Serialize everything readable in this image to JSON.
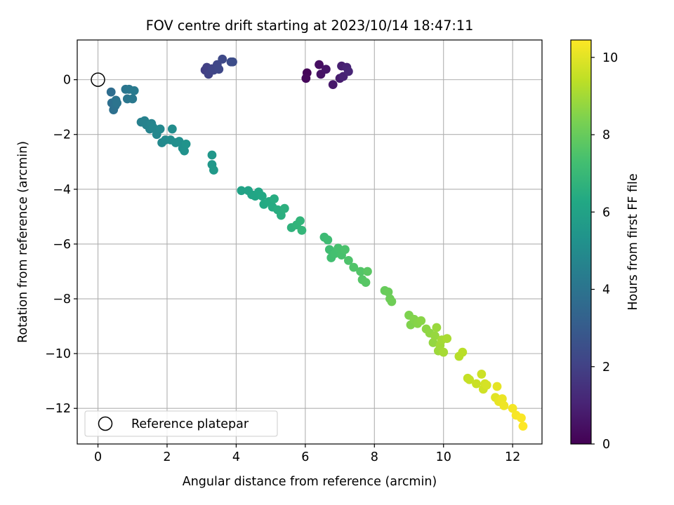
{
  "chart_data": {
    "type": "scatter",
    "title": "FOV centre drift starting at 2023/10/14 18:47:11",
    "xlabel": "Angular distance from reference (arcmin)",
    "ylabel": "Rotation from reference (arcmin)",
    "xlim": [
      -0.6,
      12.85
    ],
    "ylim": [
      -13.3,
      1.45
    ],
    "xticks": [
      0,
      2,
      4,
      6,
      8,
      10,
      12
    ],
    "yticks": [
      0,
      -2,
      -4,
      -6,
      -8,
      -10,
      -12
    ],
    "grid": true,
    "colormap": "viridis",
    "colorbar": {
      "label": "Hours from first FF file",
      "range": [
        0,
        10.45
      ],
      "ticks": [
        0,
        2,
        4,
        6,
        8,
        10
      ]
    },
    "legend": {
      "placement": "lower-left",
      "entries": [
        {
          "label": "Reference platepar",
          "marker": "open-circle"
        }
      ]
    },
    "reference_point": {
      "x": 0,
      "y": 0
    },
    "series": [
      {
        "fields": [
          "x",
          "y",
          "hours"
        ],
        "points": [
          [
            6.05,
            0.25,
            0.1
          ],
          [
            6.02,
            0.05,
            0.2
          ],
          [
            6.4,
            0.55,
            0.4
          ],
          [
            6.45,
            0.2,
            0.5
          ],
          [
            6.6,
            0.38,
            0.6
          ],
          [
            6.8,
            -0.18,
            0.7
          ],
          [
            7.0,
            0.05,
            0.8
          ],
          [
            7.05,
            0.5,
            0.9
          ],
          [
            7.1,
            0.12,
            1.0
          ],
          [
            7.2,
            0.45,
            1.05
          ],
          [
            7.25,
            0.3,
            1.1
          ],
          [
            3.1,
            0.35,
            1.9
          ],
          [
            3.15,
            0.45,
            2.0
          ],
          [
            3.2,
            0.2,
            2.05
          ],
          [
            3.3,
            0.4,
            2.1
          ],
          [
            3.35,
            0.35,
            2.15
          ],
          [
            3.45,
            0.55,
            2.2
          ],
          [
            3.5,
            0.38,
            2.25
          ],
          [
            3.6,
            0.75,
            2.3
          ],
          [
            3.85,
            0.65,
            2.4
          ],
          [
            3.9,
            0.65,
            2.45
          ],
          [
            0.38,
            -0.45,
            3.7
          ],
          [
            0.4,
            -0.85,
            3.8
          ],
          [
            0.45,
            -1.1,
            3.85
          ],
          [
            0.5,
            -0.95,
            3.9
          ],
          [
            0.52,
            -0.75,
            3.95
          ],
          [
            0.55,
            -0.85,
            4.0
          ],
          [
            0.8,
            -0.35,
            4.05
          ],
          [
            0.85,
            -0.7,
            4.1
          ],
          [
            0.9,
            -0.35,
            4.15
          ],
          [
            1.0,
            -0.7,
            4.2
          ],
          [
            1.05,
            -0.4,
            4.25
          ],
          [
            1.25,
            -1.55,
            4.5
          ],
          [
            1.35,
            -1.5,
            4.55
          ],
          [
            1.4,
            -1.65,
            4.6
          ],
          [
            1.5,
            -1.8,
            4.65
          ],
          [
            1.55,
            -1.6,
            4.7
          ],
          [
            1.6,
            -1.75,
            4.75
          ],
          [
            1.7,
            -2.0,
            4.8
          ],
          [
            1.8,
            -1.8,
            4.85
          ],
          [
            1.85,
            -2.3,
            4.9
          ],
          [
            1.95,
            -2.2,
            4.95
          ],
          [
            2.1,
            -2.2,
            5.0
          ],
          [
            2.15,
            -1.8,
            5.05
          ],
          [
            2.25,
            -2.3,
            5.1
          ],
          [
            2.35,
            -2.25,
            5.15
          ],
          [
            2.45,
            -2.5,
            5.2
          ],
          [
            2.5,
            -2.6,
            5.25
          ],
          [
            2.55,
            -2.35,
            5.3
          ],
          [
            3.3,
            -2.75,
            5.5
          ],
          [
            3.3,
            -3.1,
            5.55
          ],
          [
            3.35,
            -3.3,
            5.6
          ],
          [
            4.15,
            -4.05,
            6.0
          ],
          [
            4.35,
            -4.05,
            6.05
          ],
          [
            4.45,
            -4.2,
            6.1
          ],
          [
            4.55,
            -4.25,
            6.15
          ],
          [
            4.65,
            -4.1,
            6.2
          ],
          [
            4.75,
            -4.25,
            6.25
          ],
          [
            4.8,
            -4.55,
            6.3
          ],
          [
            4.95,
            -4.45,
            6.35
          ],
          [
            5.05,
            -4.65,
            6.4
          ],
          [
            5.1,
            -4.35,
            6.45
          ],
          [
            5.2,
            -4.75,
            6.5
          ],
          [
            5.3,
            -4.95,
            6.55
          ],
          [
            5.4,
            -4.7,
            6.6
          ],
          [
            5.6,
            -5.4,
            6.7
          ],
          [
            5.75,
            -5.3,
            6.75
          ],
          [
            5.85,
            -5.15,
            6.8
          ],
          [
            5.9,
            -5.5,
            6.85
          ],
          [
            6.55,
            -5.75,
            7.1
          ],
          [
            6.65,
            -5.85,
            7.15
          ],
          [
            6.7,
            -6.2,
            7.2
          ],
          [
            6.75,
            -6.5,
            7.25
          ],
          [
            6.85,
            -6.35,
            7.3
          ],
          [
            6.95,
            -6.15,
            7.35
          ],
          [
            7.05,
            -6.4,
            7.4
          ],
          [
            7.15,
            -6.2,
            7.45
          ],
          [
            7.25,
            -6.6,
            7.5
          ],
          [
            7.4,
            -6.85,
            7.55
          ],
          [
            7.6,
            -7.0,
            7.6
          ],
          [
            7.65,
            -7.3,
            7.65
          ],
          [
            7.75,
            -7.4,
            7.7
          ],
          [
            7.8,
            -7.0,
            7.75
          ],
          [
            8.3,
            -7.7,
            8.0
          ],
          [
            8.4,
            -7.75,
            8.05
          ],
          [
            8.45,
            -8.0,
            8.1
          ],
          [
            8.5,
            -8.1,
            8.15
          ],
          [
            9.0,
            -8.6,
            8.4
          ],
          [
            9.05,
            -8.95,
            8.45
          ],
          [
            9.15,
            -8.75,
            8.5
          ],
          [
            9.25,
            -8.9,
            8.55
          ],
          [
            9.35,
            -8.8,
            8.6
          ],
          [
            9.5,
            -9.1,
            8.65
          ],
          [
            9.6,
            -9.25,
            8.7
          ],
          [
            9.7,
            -9.6,
            8.75
          ],
          [
            9.75,
            -9.35,
            8.8
          ],
          [
            9.8,
            -9.05,
            8.85
          ],
          [
            9.85,
            -9.9,
            8.9
          ],
          [
            9.9,
            -9.7,
            8.95
          ],
          [
            9.95,
            -9.5,
            9.0
          ],
          [
            10.0,
            -9.95,
            9.05
          ],
          [
            10.1,
            -9.45,
            9.1
          ],
          [
            10.45,
            -10.1,
            9.3
          ],
          [
            10.55,
            -9.95,
            9.35
          ],
          [
            10.7,
            -10.9,
            9.5
          ],
          [
            10.75,
            -10.95,
            9.55
          ],
          [
            10.95,
            -11.1,
            9.6
          ],
          [
            11.1,
            -10.75,
            9.65
          ],
          [
            11.15,
            -11.3,
            9.7
          ],
          [
            11.2,
            -11.1,
            9.75
          ],
          [
            11.25,
            -11.15,
            9.8
          ],
          [
            11.5,
            -11.6,
            10.0
          ],
          [
            11.55,
            -11.2,
            10.05
          ],
          [
            11.6,
            -11.75,
            10.1
          ],
          [
            11.7,
            -11.65,
            10.15
          ],
          [
            11.75,
            -11.9,
            10.2
          ],
          [
            12.0,
            -12.0,
            10.3
          ],
          [
            12.1,
            -12.25,
            10.35
          ],
          [
            12.25,
            -12.35,
            10.4
          ],
          [
            12.3,
            -12.65,
            10.45
          ]
        ]
      }
    ]
  }
}
